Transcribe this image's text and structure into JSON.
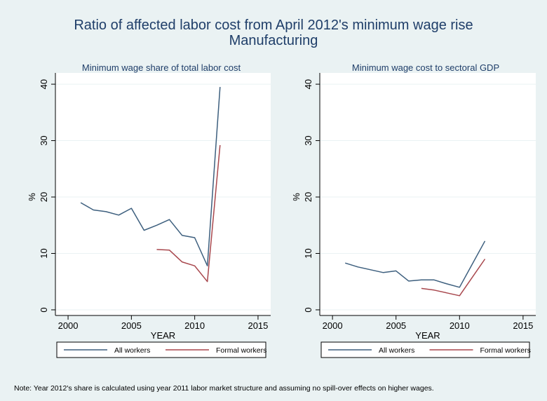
{
  "figure": {
    "title_line1": "Ratio of affected labor cost from April 2012's minimum wage rise",
    "title_line2": "Manufacturing",
    "note": "Note: Year 2012's share is calculated using year 2011 labor market structure and assuming no spill-over effects on higher wages.",
    "colors": {
      "all_workers": "#3d5f7e",
      "formal_workers": "#a8474d",
      "outer_background": "#eaf2f3",
      "plot_background": "#ffffff",
      "grid": "#eaf2f3",
      "title": "#1f3e69"
    }
  },
  "chart_data": [
    {
      "type": "line",
      "title": "Minimum wage share of total labor cost",
      "xlabel": "YEAR",
      "ylabel": "%",
      "xlim": [
        1999,
        2016
      ],
      "ylim": [
        -1,
        42
      ],
      "xticks": [
        2000,
        2005,
        2010,
        2015
      ],
      "yticks": [
        0,
        10,
        20,
        30,
        40
      ],
      "grid": true,
      "legend_position": "bottom",
      "series": [
        {
          "name": "All workers",
          "color": "#3d5f7e",
          "x": [
            2001,
            2002,
            2003,
            2004,
            2005,
            2006,
            2007,
            2008,
            2009,
            2010,
            2011,
            2012
          ],
          "y": [
            19.0,
            17.7,
            17.4,
            16.8,
            18.0,
            14.1,
            15.0,
            16.0,
            13.2,
            12.8,
            7.8,
            39.5
          ]
        },
        {
          "name": "Formal workers",
          "color": "#a8474d",
          "x": [
            2007,
            2008,
            2009,
            2010,
            2011,
            2012
          ],
          "y": [
            10.7,
            10.6,
            8.5,
            7.8,
            5.0,
            29.2
          ]
        }
      ]
    },
    {
      "type": "line",
      "title": "Minimum wage cost to sectoral GDP",
      "xlabel": "YEAR",
      "ylabel": "%",
      "xlim": [
        1999,
        2016
      ],
      "ylim": [
        -1,
        42
      ],
      "xticks": [
        2000,
        2005,
        2010,
        2015
      ],
      "yticks": [
        0,
        10,
        20,
        30,
        40
      ],
      "grid": true,
      "legend_position": "bottom",
      "series": [
        {
          "name": "All workers",
          "color": "#3d5f7e",
          "x": [
            2001,
            2002,
            2003,
            2004,
            2005,
            2006,
            2007,
            2008,
            2009,
            2010,
            2012
          ],
          "y": [
            8.3,
            7.6,
            7.1,
            6.6,
            6.9,
            5.1,
            5.3,
            5.3,
            4.6,
            4.0,
            12.2
          ]
        },
        {
          "name": "Formal workers",
          "color": "#a8474d",
          "x": [
            2007,
            2008,
            2009,
            2010,
            2012
          ],
          "y": [
            3.8,
            3.5,
            3.0,
            2.5,
            9.0
          ]
        }
      ]
    }
  ]
}
